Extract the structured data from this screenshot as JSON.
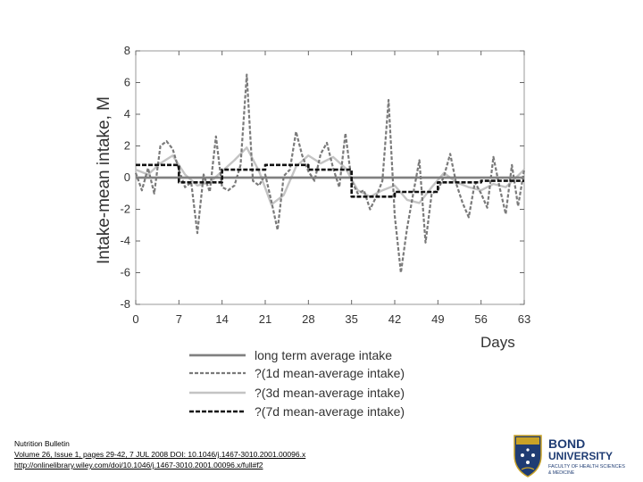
{
  "chart_data": {
    "type": "line",
    "title": "",
    "xlabel": "Days",
    "ylabel": "Intake-mean intake, M",
    "xlim": [
      0,
      63
    ],
    "ylim": [
      -8,
      8
    ],
    "xticks": [
      0,
      7,
      14,
      21,
      28,
      35,
      42,
      49,
      56,
      63
    ],
    "yticks": [
      -8,
      -6,
      -4,
      -2,
      0,
      2,
      4,
      6,
      8
    ],
    "grid": false,
    "legend_position": "below",
    "series": [
      {
        "name": "long term average intake",
        "style": "solid-dark-double",
        "color": "#555555",
        "x": [
          0,
          63
        ],
        "y": [
          0,
          0
        ]
      },
      {
        "name": "?(1d mean-average intake)",
        "style": "dashed-grey",
        "color": "#7a7a7a",
        "x": [
          0,
          1,
          2,
          3,
          4,
          5,
          6,
          7,
          8,
          9,
          10,
          11,
          12,
          13,
          14,
          15,
          16,
          17,
          18,
          19,
          20,
          21,
          22,
          23,
          24,
          25,
          26,
          27,
          28,
          29,
          30,
          31,
          32,
          33,
          34,
          35,
          36,
          37,
          38,
          39,
          40,
          41,
          42,
          43,
          44,
          45,
          46,
          47,
          48,
          49,
          50,
          51,
          52,
          53,
          54,
          55,
          56,
          57,
          58,
          59,
          60,
          61,
          62,
          63
        ],
        "y": [
          0.3,
          -0.8,
          0.6,
          -1.0,
          2.0,
          2.3,
          1.8,
          0.5,
          -0.6,
          -0.3,
          -3.5,
          0.2,
          -0.9,
          2.6,
          -0.6,
          -0.8,
          -0.5,
          0.8,
          6.5,
          -0.2,
          -0.5,
          0.2,
          -1.5,
          -3.3,
          0.1,
          0.5,
          2.9,
          1.4,
          0.4,
          -0.2,
          1.5,
          2.2,
          0.6,
          -0.6,
          2.8,
          -0.2,
          -1.0,
          -0.8,
          -2.0,
          -1.2,
          -0.2,
          4.9,
          -2.4,
          -6.0,
          -3.2,
          -1.0,
          1.1,
          -4.1,
          -1.0,
          -0.8,
          0.1,
          1.5,
          -0.4,
          -1.6,
          -2.5,
          -0.3,
          -1.0,
          -1.9,
          1.3,
          -0.6,
          -2.3,
          0.8,
          -1.8,
          0.5
        ]
      },
      {
        "name": "?(3d mean-average intake)",
        "style": "solid-light",
        "color": "#c4c4c4",
        "x": [
          0,
          2,
          4,
          6,
          8,
          10,
          12,
          14,
          16,
          18,
          20,
          22,
          24,
          26,
          28,
          30,
          32,
          34,
          36,
          38,
          40,
          42,
          44,
          46,
          48,
          50,
          52,
          54,
          56,
          58,
          60,
          63
        ],
        "y": [
          0.5,
          0.2,
          0.9,
          1.4,
          0.2,
          -0.5,
          -0.3,
          0.4,
          1.1,
          1.9,
          0.4,
          -1.7,
          -1.1,
          0.7,
          1.4,
          0.9,
          1.3,
          0.6,
          -0.8,
          -1.2,
          -0.8,
          -0.5,
          -1.4,
          -1.6,
          -0.6,
          0.3,
          -0.3,
          -0.6,
          -0.8,
          -0.4,
          -0.6,
          0.5
        ]
      },
      {
        "name": "?(7d mean-average intake)",
        "style": "dashed-black",
        "color": "#111111",
        "x": [
          0,
          7,
          7,
          14,
          14,
          21,
          21,
          28,
          28,
          35,
          35,
          42,
          42,
          49,
          49,
          56,
          56,
          63
        ],
        "y": [
          0.8,
          0.8,
          -0.3,
          -0.3,
          0.5,
          0.5,
          0.8,
          0.8,
          0.5,
          0.5,
          -1.2,
          -1.2,
          -0.9,
          -0.9,
          -0.3,
          -0.3,
          -0.2,
          -0.2
        ]
      }
    ]
  },
  "citation": {
    "journal": "Nutrition Bulletin",
    "volume_line": "Volume 26, Issue 1, pages 29-42, 7 JUL 2008 DOI: 10.1046/j.1467-3010.2001.00096.x",
    "url": "http://onlinelibrary.wiley.com/doi/10.1046/j.1467-3010.2001.00096.x/full#f2"
  },
  "logo": {
    "line1": "BOND",
    "line2": "UNIVERSITY",
    "line3": "FACULTY OF HEALTH SCIENCES",
    "line4": "& MEDICINE",
    "primary_color": "#1f3c73",
    "accent_color": "#c9a227"
  }
}
